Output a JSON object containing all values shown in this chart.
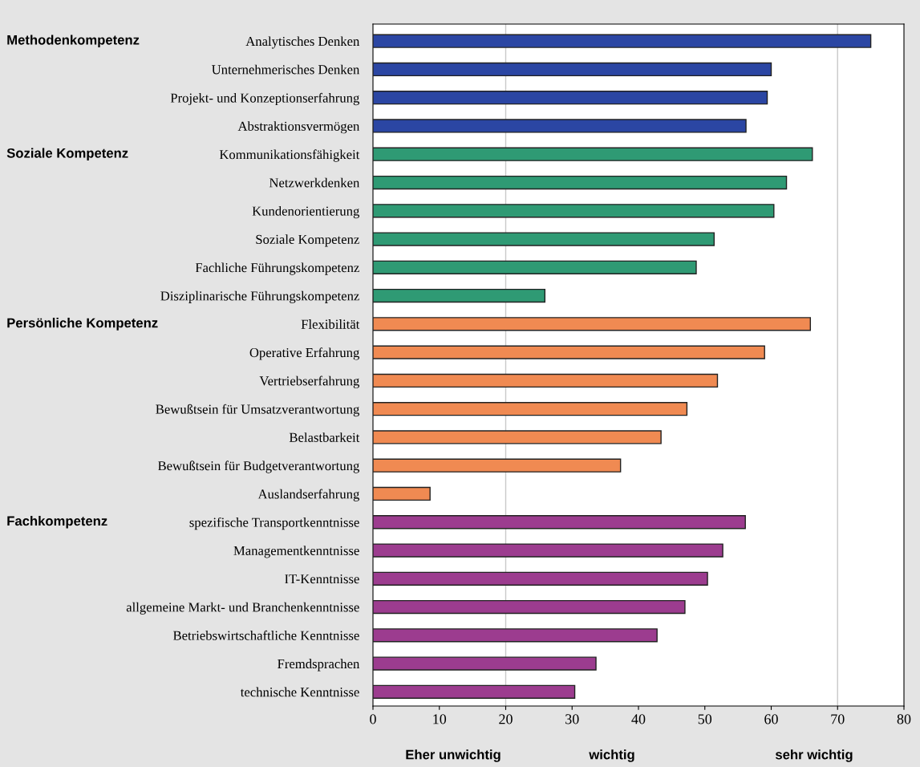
{
  "chart_data": {
    "type": "bar",
    "orientation": "horizontal",
    "categories": [
      "Analytisches Denken",
      "Unternehmerisches Denken",
      "Projekt- und Konzeptionserfahrung",
      "Abstraktionsvermögen",
      "Kommunikationsfähigkeit",
      "Netzwerkdenken",
      "Kundenorientierung",
      "Soziale Kompetenz",
      "Fachliche Führungskompetenz",
      "Disziplinarische Führungskompetenz",
      "Flexibilität",
      "Operative Erfahrung",
      "Vertriebserfahrung",
      "Bewußtsein für Umsatzverantwortung",
      "Belastbarkeit",
      "Bewußtsein für Budgetverantwortung",
      "Auslandserfahrung",
      "spezifische Transportkenntnisse",
      "Managementkenntnisse",
      "IT-Kenntnisse",
      "allgemeine Markt- und Branchenkenntnisse",
      "Betriebswirtschaftliche Kenntnisse",
      "Fremdsprachen",
      "technische Kenntnisse"
    ],
    "values": [
      75,
      60,
      59.4,
      56.2,
      66.2,
      62.3,
      60.4,
      51.4,
      48.7,
      25.9,
      65.9,
      59,
      51.9,
      47.3,
      43.4,
      37.3,
      8.6,
      56.1,
      52.7,
      50.4,
      47,
      42.8,
      33.6,
      30.4
    ],
    "colors": [
      "#2b46a3",
      "#2b46a3",
      "#2b46a3",
      "#2b46a3",
      "#2f9a74",
      "#2f9a74",
      "#2f9a74",
      "#2f9a74",
      "#2f9a74",
      "#2f9a74",
      "#f08a52",
      "#f08a52",
      "#f08a52",
      "#f08a52",
      "#f08a52",
      "#f08a52",
      "#f08a52",
      "#9c3c8f",
      "#9c3c8f",
      "#9c3c8f",
      "#9c3c8f",
      "#9c3c8f",
      "#9c3c8f",
      "#9c3c8f"
    ],
    "xlim": [
      0,
      80
    ],
    "xticks": [
      0,
      10,
      20,
      30,
      40,
      50,
      60,
      70,
      80
    ],
    "ref_lines": [
      {
        "axis": "x",
        "value": 20,
        "color": "#c8c8c8"
      },
      {
        "axis": "x",
        "value": 70,
        "color": "#c8c8c8"
      }
    ],
    "annotations": [
      "Methodenkompetenz",
      "Soziale Kompetenz",
      "Persönliche Kompetenz",
      "Fachkompetenz",
      "Eher unwichtig",
      "wichtig",
      "sehr wichtig"
    ],
    "grid": false,
    "legend": false
  }
}
